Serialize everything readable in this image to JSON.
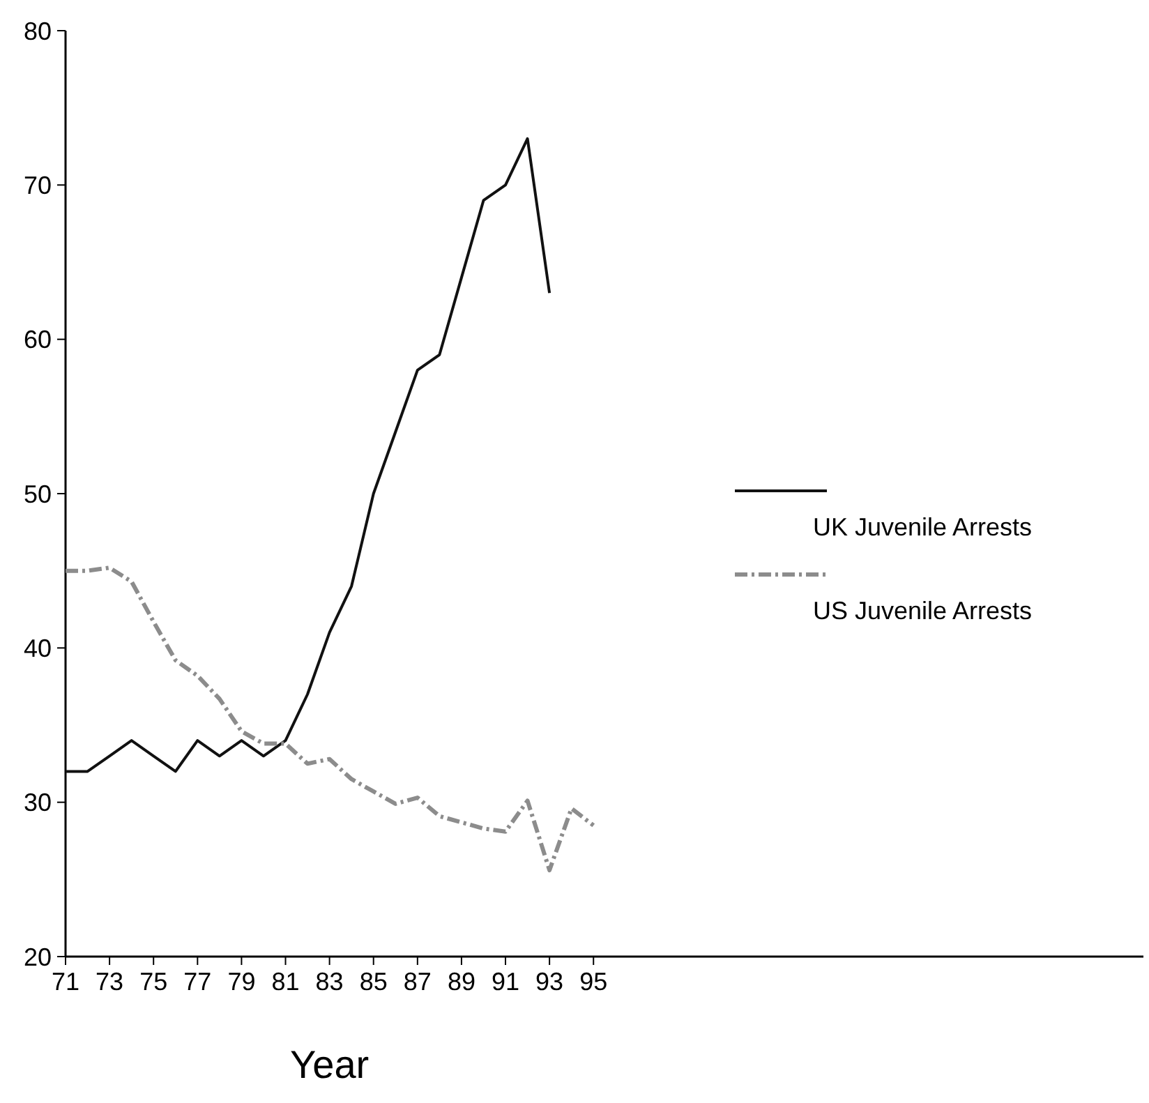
{
  "chart_data": {
    "type": "line",
    "xlabel": "Year",
    "x": [
      71,
      72,
      73,
      74,
      75,
      76,
      77,
      78,
      79,
      80,
      81,
      82,
      83,
      84,
      85,
      86,
      87,
      88,
      89,
      90,
      91,
      92,
      93,
      94,
      95
    ],
    "xlim": [
      71,
      120
    ],
    "xticks": [
      71,
      73,
      75,
      77,
      79,
      81,
      83,
      85,
      87,
      89,
      91,
      93,
      95
    ],
    "ylim": [
      20,
      80
    ],
    "yticks": [
      20,
      30,
      40,
      50,
      60,
      70,
      80
    ],
    "legend": "right",
    "grid": false,
    "marker": "none",
    "series": [
      {
        "name": "UK Juvenile Arrests",
        "color": "#111111",
        "line_style": "solid",
        "values": [
          32,
          32,
          33,
          34,
          33,
          32,
          34,
          33,
          34,
          33,
          34,
          37,
          41,
          44,
          50,
          54,
          58,
          59,
          64,
          69,
          70,
          73,
          63,
          null,
          null
        ]
      },
      {
        "name": "US Juvenile Arrests",
        "color": "#8c8c8c",
        "line_style": "dashed",
        "values": [
          45,
          45,
          45.2,
          44.3,
          41.7,
          39.2,
          38.2,
          36.7,
          34.6,
          33.8,
          33.8,
          32.5,
          32.8,
          31.5,
          30.7,
          29.9,
          30.3,
          29.1,
          28.7,
          28.3,
          28.1,
          30.1,
          25.6,
          29.6,
          28.5
        ]
      }
    ]
  }
}
